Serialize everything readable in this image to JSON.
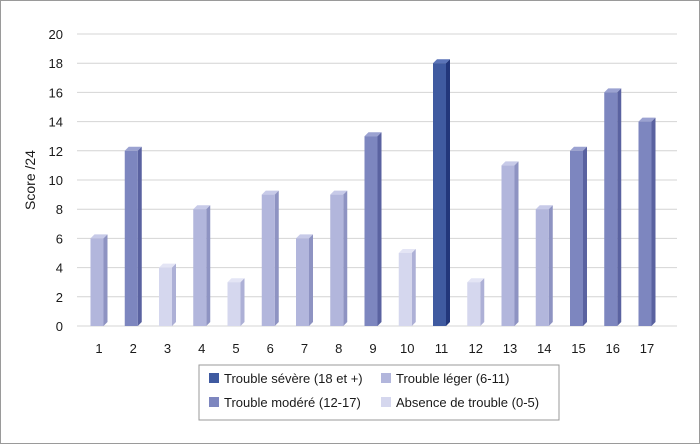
{
  "chart_data": {
    "type": "bar",
    "ylabel": "Score /24",
    "xlabel": "",
    "ylim": [
      0,
      20
    ],
    "yticks": [
      0,
      2,
      4,
      6,
      8,
      10,
      12,
      14,
      16,
      18,
      20
    ],
    "categories": [
      "1",
      "2",
      "3",
      "4",
      "5",
      "6",
      "7",
      "8",
      "9",
      "10",
      "11",
      "12",
      "13",
      "14",
      "15",
      "16",
      "17"
    ],
    "values": [
      6,
      12,
      4,
      8,
      3,
      9,
      6,
      9,
      13,
      5,
      18,
      3,
      11,
      8,
      12,
      16,
      14
    ],
    "bar_class": [
      "leger",
      "modere",
      "absence",
      "leger",
      "absence",
      "leger",
      "leger",
      "leger",
      "modere",
      "absence",
      "severe",
      "absence",
      "leger",
      "leger",
      "modere",
      "modere",
      "modere"
    ],
    "classes": {
      "severe": {
        "label": "Trouble sévère (18 et +)",
        "color": "#3f5aa0",
        "side": "#22367a",
        "top": "#5b74b8"
      },
      "modere": {
        "label": "Trouble modéré (12-17)",
        "color": "#7d86bf",
        "side": "#5a62a0",
        "top": "#9ba2d1"
      },
      "leger": {
        "label": "Trouble léger (6-11)",
        "color": "#b2b6dc",
        "side": "#8e93c2",
        "top": "#c7cae8"
      },
      "absence": {
        "label": "Absence de trouble (0-5)",
        "color": "#d5d7ee",
        "side": "#adb0d6",
        "top": "#e4e5f5"
      }
    },
    "legend_order": [
      "severe",
      "leger",
      "modere",
      "absence"
    ],
    "grid": true,
    "legend_position": "bottom"
  }
}
